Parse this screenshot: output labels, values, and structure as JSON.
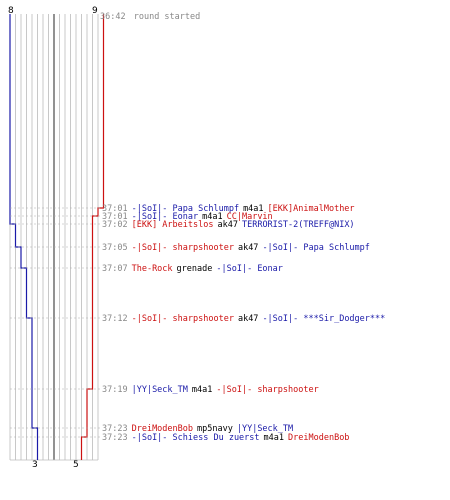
{
  "colors": {
    "blue_team": "#1a1aa8",
    "red_team": "#cc1111",
    "grid": "#bbbbbb",
    "guide": "#aaaaaa",
    "time": "#888888",
    "weapon": "#000000"
  },
  "scores": {
    "blue_start": "8",
    "red_start": "9",
    "blue_end": "3",
    "red_end": "5"
  },
  "round_start": {
    "time": "36:42",
    "text": "round started"
  },
  "events": [
    {
      "time": "37:01",
      "killer": "-|SoI|- Papa Schlumpf",
      "killer_team": "blue",
      "weapon": "m4a1",
      "victim": "[EKK]AnimalMother",
      "victim_team": "red",
      "team_lost": "red"
    },
    {
      "time": "37:01",
      "killer": "-|SoI|- Eonar",
      "killer_team": "blue",
      "weapon": "m4a1",
      "victim": "CC|Marvin",
      "victim_team": "red",
      "team_lost": "red"
    },
    {
      "time": "37:02",
      "killer": "[EKK] Arbeitslos",
      "killer_team": "red",
      "weapon": "ak47",
      "victim": "TERRORIST-2(TREFF@NIX)",
      "victim_team": "blue",
      "team_lost": "blue"
    },
    {
      "time": "37:05",
      "killer": "-|SoI|- sharpshooter",
      "killer_team": "red",
      "weapon": "ak47",
      "victim": "-|SoI|- Papa Schlumpf",
      "victim_team": "blue",
      "team_lost": "blue"
    },
    {
      "time": "37:07",
      "killer": "The-Rock",
      "killer_team": "red",
      "weapon": "grenade",
      "victim": "-|SoI|- Eonar",
      "victim_team": "blue",
      "team_lost": "blue"
    },
    {
      "time": "37:12",
      "killer": "-|SoI|- sharpshooter",
      "killer_team": "red",
      "weapon": "ak47",
      "victim": "-|SoI|- ***Sir_Dodger***",
      "victim_team": "blue",
      "team_lost": "blue"
    },
    {
      "time": "37:19",
      "killer": "|YY|Seck_TM",
      "killer_team": "blue",
      "weapon": "m4a1",
      "victim": "-|SoI|- sharpshooter",
      "victim_team": "red",
      "team_lost": "red"
    },
    {
      "time": "37:23",
      "killer": "DreiModenBob",
      "killer_team": "red",
      "weapon": "mp5navy",
      "victim": "|YY|Seck_TM",
      "victim_team": "blue",
      "team_lost": "blue"
    },
    {
      "time": "37:23",
      "killer": "-|SoI|- Schiess Du zuerst",
      "killer_team": "blue",
      "weapon": "m4a1",
      "victim": "DreiModenBob",
      "victim_team": "red",
      "team_lost": "red"
    }
  ]
}
